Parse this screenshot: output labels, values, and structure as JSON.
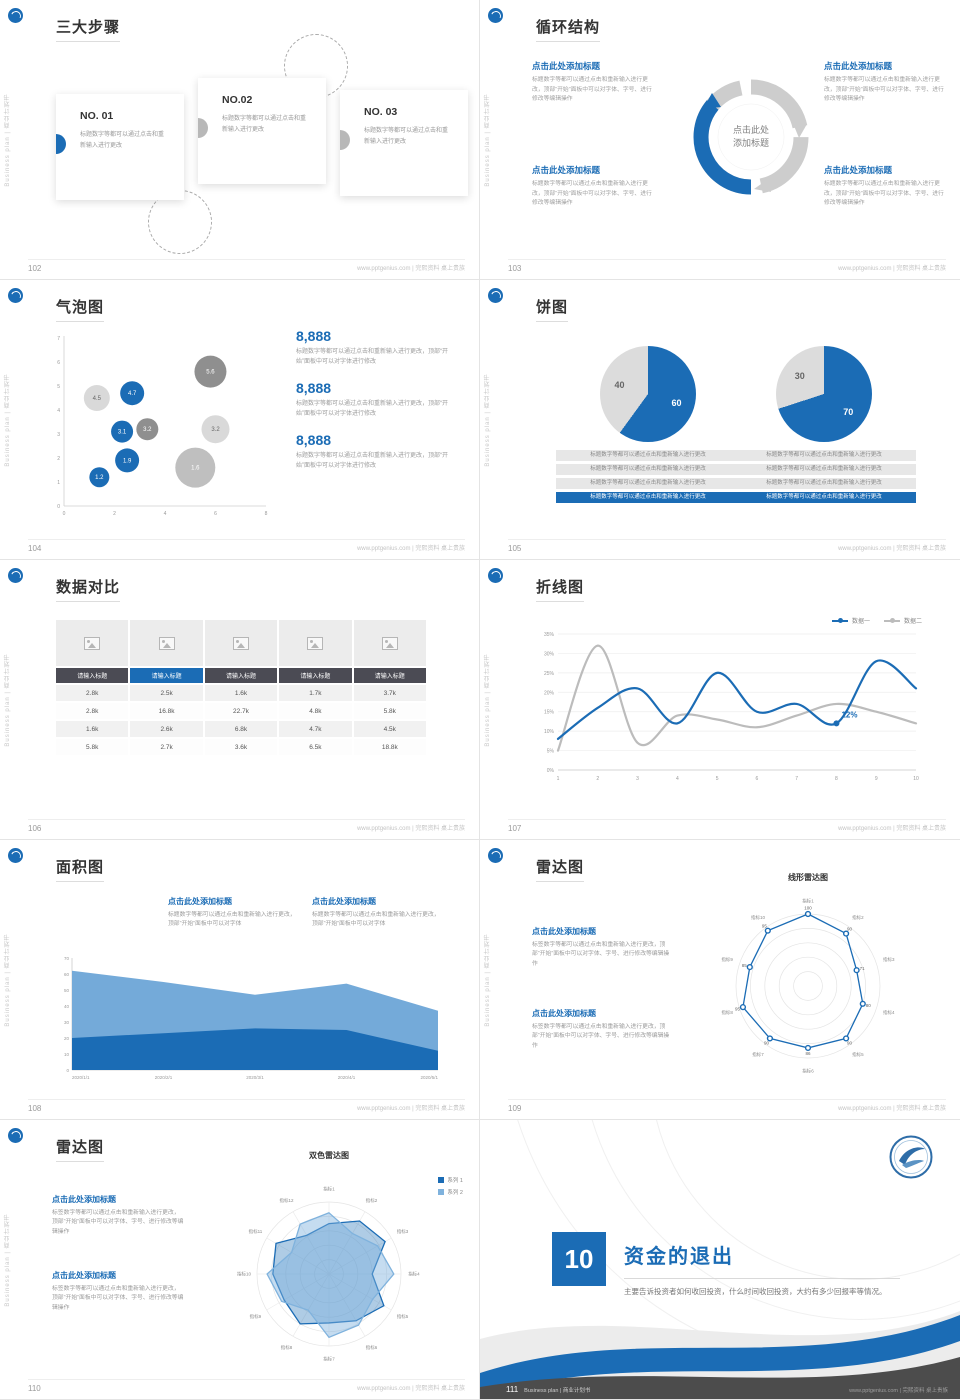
{
  "page": {
    "watermark": "www.pptgenius.com | 完熙资料 桌上贵族",
    "sidebar_text": "Business plan | 商业计划书"
  },
  "slides": {
    "s102": {
      "page_num": "102",
      "title": "三大步骤",
      "steps": [
        {
          "no": "NO. 01",
          "body": "标题数字等都可以通过点击和重新输入进行更改"
        },
        {
          "no": "NO.02",
          "body": "标题数字等都可以通过点击和重新输入进行更改"
        },
        {
          "no": "NO. 03",
          "body": "标题数字等都可以通过点击和重新输入进行更改"
        }
      ]
    },
    "s103": {
      "page_num": "103",
      "title": "循环结构",
      "center_line1": "点击此处",
      "center_line2": "添加标题",
      "blocks": [
        {
          "heading": "点击此处添加标题",
          "body": "标题数字等都可以通过点击和重新输入进行更改，顶部“开始”面板中可以对字体、字号、进行修改等编辑操作"
        },
        {
          "heading": "点击此处添加标题",
          "body": "标题数字等都可以通过点击和重新输入进行更改，顶部“开始”面板中可以对字体、字号、进行修改等编辑操作"
        },
        {
          "heading": "点击此处添加标题",
          "body": "标题数字等都可以通过点击和重新输入进行更改，顶部“开始”面板中可以对字体、字号、进行修改等编辑操作"
        },
        {
          "heading": "点击此处添加标题",
          "body": "标题数字等都可以通过点击和重新输入进行更改，顶部“开始”面板中可以对字体、字号、进行修改等编辑操作"
        }
      ]
    },
    "s104": {
      "page_num": "104",
      "title": "气泡图",
      "items": [
        {
          "value": "8,888",
          "body": "标题数字等都可以通过点击和重新输入进行更改，顶部“开始”面板中可以对字体进行修改"
        },
        {
          "value": "8,888",
          "body": "标题数字等都可以通过点击和重新输入进行更改，顶部“开始”面板中可以对字体进行修改"
        },
        {
          "value": "8,888",
          "body": "标题数字等都可以通过点击和重新输入进行更改，顶部“开始”面板中可以对字体进行修改"
        }
      ],
      "chart_data": {
        "type": "scatter",
        "x_range": [
          0,
          8
        ],
        "y_range": [
          0,
          7
        ],
        "x_ticks": [
          0,
          2,
          4,
          6,
          8
        ],
        "y_ticks": [
          0,
          1,
          2,
          3,
          4,
          5,
          6,
          7
        ],
        "bubbles": [
          {
            "x": 1.3,
            "y": 4.5,
            "r": 13,
            "color": "#d9d9d9",
            "label": "4.5",
            "label_color": "#666666"
          },
          {
            "x": 2.7,
            "y": 4.7,
            "r": 12,
            "color": "#1b6cb5",
            "label": "4.7",
            "label_color": "#ffffff"
          },
          {
            "x": 2.3,
            "y": 3.1,
            "r": 11,
            "color": "#1b6cb5",
            "label": "3.1",
            "label_color": "#ffffff"
          },
          {
            "x": 3.3,
            "y": 3.2,
            "r": 11,
            "color": "#8f8f8f",
            "label": "3.2",
            "label_color": "#ffffff"
          },
          {
            "x": 2.5,
            "y": 1.9,
            "r": 12,
            "color": "#1b6cb5",
            "label": "1.9",
            "label_color": "#ffffff"
          },
          {
            "x": 1.4,
            "y": 1.2,
            "r": 10,
            "color": "#1b6cb5",
            "label": "1.2",
            "label_color": "#ffffff"
          },
          {
            "x": 5.2,
            "y": 1.6,
            "r": 20,
            "color": "#bfbfbf",
            "label": "1.6",
            "label_color": "#ffffff"
          },
          {
            "x": 6.0,
            "y": 3.2,
            "r": 14,
            "color": "#d9d9d9",
            "label": "3.2",
            "label_color": "#666666"
          },
          {
            "x": 5.8,
            "y": 5.6,
            "r": 16,
            "color": "#8f8f8f",
            "label": "5.6",
            "label_color": "#ffffff"
          }
        ]
      }
    },
    "s105": {
      "page_num": "105",
      "title": "饼图",
      "legend_text": "标题数字等都可以通过点击和重新输入进行更改",
      "chart_data": [
        {
          "type": "pie",
          "slices": [
            {
              "label": "60",
              "value": 60,
              "color": "#1b6cb5",
              "label_color": "#ffffff"
            },
            {
              "label": "40",
              "value": 40,
              "color": "#dcdcdc",
              "label_color": "#666666"
            }
          ]
        },
        {
          "type": "pie",
          "slices": [
            {
              "label": "70",
              "value": 70,
              "color": "#1b6cb5",
              "label_color": "#ffffff"
            },
            {
              "label": "30",
              "value": 30,
              "color": "#dcdcdc",
              "label_color": "#666666"
            }
          ]
        }
      ]
    },
    "s106": {
      "page_num": "106",
      "title": "数据对比",
      "table": {
        "header": [
          "请输入标题",
          "请输入标题",
          "请输入标题",
          "请输入标题",
          "请输入标题"
        ],
        "header_colors": [
          "#4b4b54",
          "#1b6cb5",
          "#4b4b54",
          "#4b4b54",
          "#4b4b54"
        ],
        "rows": [
          [
            "2.8k",
            "2.5k",
            "1.6k",
            "1.7k",
            "3.7k"
          ],
          [
            "2.8k",
            "16.8k",
            "22.7k",
            "4.8k",
            "5.8k"
          ],
          [
            "1.6k",
            "2.6k",
            "6.8k",
            "4.7k",
            "4.5k"
          ],
          [
            "5.8k",
            "2.7k",
            "3.6k",
            "6.5k",
            "18.8k"
          ]
        ]
      }
    },
    "s107": {
      "page_num": "107",
      "title": "折线图",
      "chart_data": {
        "type": "line",
        "x": [
          1,
          2,
          3,
          4,
          5,
          6,
          7,
          8,
          9,
          10
        ],
        "ylim": [
          0,
          35
        ],
        "ystep": 5,
        "y_suffix": "%",
        "series": [
          {
            "name": "数据一",
            "color": "#1b6cb5",
            "values": [
              8,
              16,
              21,
              12,
              25,
              15,
              17,
              12,
              28,
              21
            ]
          },
          {
            "name": "数据二",
            "color": "#bcbcbc",
            "values": [
              5,
              32,
              7,
              14,
              13,
              11,
              14,
              17,
              15,
              12
            ]
          }
        ],
        "annotation": {
          "text": "12%",
          "series": 0,
          "index": 7
        }
      }
    },
    "s108": {
      "page_num": "108",
      "title": "面积图",
      "blocks": [
        {
          "heading": "点击此处添加标题",
          "body": "标题数字等都可以通过点击和重新输入进行更改，顶部“开始”面板中可以对字体"
        },
        {
          "heading": "点击此处添加标题",
          "body": "标题数字等都可以通过点击和重新输入进行更改，顶部“开始”面板中可以对字体"
        }
      ],
      "chart_data": {
        "type": "area",
        "categories": [
          "2020/1/1",
          "2020/2/1",
          "2020/3/1",
          "2020/4/1",
          "2020/5/1"
        ],
        "ylim": [
          0,
          70
        ],
        "ystep": 10,
        "series": [
          {
            "name": "系列上",
            "color": "#74aad9",
            "values": [
              62,
              55,
              47,
              54,
              37
            ]
          },
          {
            "name": "系列下",
            "color": "#1b6cb5",
            "values": [
              20,
              23,
              26,
              25,
              12
            ]
          }
        ]
      }
    },
    "s109": {
      "page_num": "109",
      "title": "雷达图",
      "chart_title": "线形雷达图",
      "blocks": [
        {
          "heading": "点击此处添加标题",
          "body": "标签数字等都可以通过点击和重新输入进行更改，顶部“开始”面板中可以对字体、字号、进行修改等编辑操作"
        },
        {
          "heading": "点击此处添加标题",
          "body": "标签数字等都可以通过点击和重新输入进行更改，顶部“开始”面板中可以对字体、字号、进行修改等编辑操作"
        }
      ],
      "chart_data": {
        "type": "radar",
        "labels": [
          "指标1",
          "指标2",
          "指标3",
          "指标4",
          "指标5",
          "指标6",
          "指标7",
          "指标8",
          "指标9",
          "指标10"
        ],
        "max": 100,
        "series": [
          {
            "name": "系列1",
            "color": "#1b6cb5",
            "values": [
              100,
              90,
              71,
              80,
              90,
              86,
              90,
              95,
              85,
              95
            ],
            "dots": true,
            "show_values": true
          }
        ]
      }
    },
    "s110": {
      "page_num": "110",
      "title": "雷达图",
      "chart_title": "双色雷达图",
      "blocks": [
        {
          "heading": "点击此处添加标题",
          "body": "标签数字等都可以通过点击和重新输入进行更改，顶部“开始”面板中可以对字体、字号、进行修改等编辑操作"
        },
        {
          "heading": "点击此处添加标题",
          "body": "标签数字等都可以通过点击和重新输入进行更改，顶部“开始”面板中可以对字体、字号、进行修改等编辑操作"
        }
      ],
      "chart_data": {
        "type": "radar",
        "labels": [
          "指标1",
          "指标2",
          "指标3",
          "指标4",
          "指标5",
          "指标6",
          "指标7",
          "指标8",
          "指标9",
          "指标10",
          "指标11",
          "指标12"
        ],
        "max": 100,
        "series": [
          {
            "name": "系列 1",
            "color": "#1b6cb5",
            "fill": "rgba(27,108,181,0.35)",
            "values": [
              70,
              85,
              90,
              60,
              88,
              75,
              68,
              80,
              72,
              78,
              85,
              62
            ]
          },
          {
            "name": "系列 2",
            "color": "#7fb2dd",
            "fill": "rgba(127,178,221,0.45)",
            "values": [
              85,
              65,
              78,
              90,
              70,
              82,
              88,
              58,
              76,
              86,
              60,
              80
            ]
          }
        ]
      }
    },
    "s111": {
      "page_num": "111",
      "footer_label": "Business plan | 商业计划书",
      "number": "10",
      "title": "资金的退出",
      "body": "主要告诉投资者如何收回投资，什么时间收回投资，大约有多少回报率等情况。"
    }
  }
}
